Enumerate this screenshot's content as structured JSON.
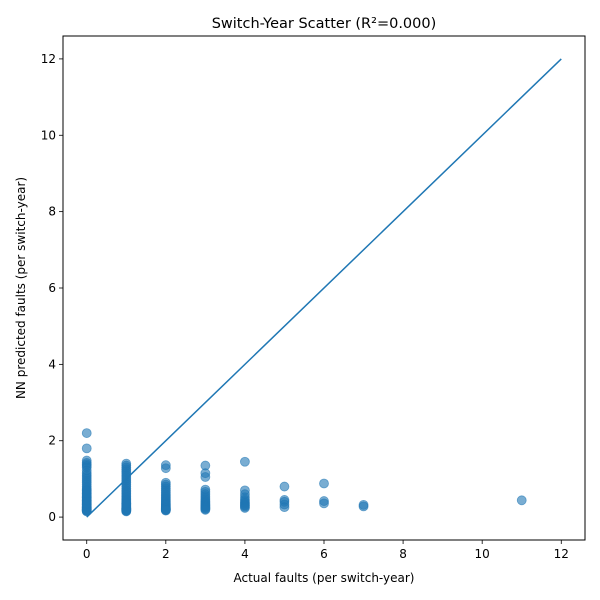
{
  "chart_data": {
    "type": "scatter",
    "title": "Switch-Year Scatter (R²=0.000)",
    "xlabel": "Actual faults (per switch-year)",
    "ylabel": "NN predicted faults (per switch-year)",
    "xlim": [
      -0.6,
      12.6
    ],
    "ylim": [
      -0.6,
      12.6
    ],
    "xticks": [
      0,
      2,
      4,
      6,
      8,
      10,
      12
    ],
    "yticks": [
      0,
      2,
      4,
      6,
      8,
      10,
      12
    ],
    "grid": false,
    "marker_color": "#1f77b4",
    "marker_alpha": 0.6,
    "line_color": "#1f77b4",
    "reference_line": {
      "x": [
        0,
        12
      ],
      "y": [
        0,
        12
      ]
    },
    "series": [
      {
        "x": [
          0,
          0,
          0,
          0,
          0,
          0,
          0,
          0,
          0,
          0,
          0,
          0,
          0,
          0,
          0,
          0,
          0,
          0,
          0,
          0,
          0,
          0,
          0,
          0,
          0,
          0,
          0,
          0,
          0,
          0,
          0,
          0,
          0,
          0,
          0,
          0,
          0,
          0,
          0,
          0,
          0,
          0,
          0,
          0,
          0,
          0,
          0,
          0,
          0,
          0,
          1,
          1,
          1,
          1,
          1,
          1,
          1,
          1,
          1,
          1,
          1,
          1,
          1,
          1,
          1,
          1,
          1,
          1,
          1,
          1,
          1,
          1,
          1,
          1,
          1,
          1,
          1,
          1,
          1,
          1,
          1,
          1,
          1,
          1,
          1,
          1,
          1,
          1,
          1,
          1,
          2,
          2,
          2,
          2,
          2,
          2,
          2,
          2,
          2,
          2,
          2,
          2,
          2,
          2,
          2,
          2,
          2,
          2,
          2,
          2,
          2,
          2,
          2,
          2,
          2,
          2,
          2,
          2,
          3,
          3,
          3,
          3,
          3,
          3,
          3,
          3,
          3,
          3,
          3,
          3,
          3,
          3,
          3,
          3,
          3,
          3,
          3,
          3,
          4,
          4,
          4,
          4,
          4,
          4,
          4,
          4,
          4,
          4,
          4,
          4,
          5,
          5,
          5,
          5,
          5,
          6,
          6,
          6,
          7,
          7,
          11
        ],
        "y": [
          2.2,
          1.8,
          1.48,
          1.42,
          1.38,
          1.34,
          1.3,
          1.22,
          1.15,
          1.1,
          1.05,
          1.0,
          0.95,
          0.9,
          0.85,
          0.8,
          0.76,
          0.72,
          0.68,
          0.64,
          0.6,
          0.57,
          0.54,
          0.51,
          0.48,
          0.45,
          0.43,
          0.41,
          0.39,
          0.37,
          0.35,
          0.33,
          0.31,
          0.29,
          0.27,
          0.25,
          0.23,
          0.21,
          0.2,
          0.19,
          0.18,
          0.17,
          0.16,
          0.15,
          0.26,
          0.34,
          0.44,
          0.52,
          0.62,
          0.7,
          1.4,
          1.35,
          1.3,
          1.25,
          1.2,
          1.15,
          1.1,
          1.05,
          1.0,
          0.95,
          0.9,
          0.85,
          0.8,
          0.75,
          0.7,
          0.66,
          0.62,
          0.58,
          0.54,
          0.5,
          0.47,
          0.44,
          0.41,
          0.38,
          0.35,
          0.33,
          0.31,
          0.29,
          0.27,
          0.25,
          0.23,
          0.21,
          0.2,
          0.19,
          0.18,
          0.17,
          0.16,
          0.15,
          0.22,
          0.36,
          1.36,
          1.28,
          0.9,
          0.85,
          0.8,
          0.75,
          0.7,
          0.65,
          0.6,
          0.56,
          0.52,
          0.48,
          0.45,
          0.42,
          0.39,
          0.36,
          0.34,
          0.32,
          0.3,
          0.28,
          0.26,
          0.24,
          0.22,
          0.21,
          0.2,
          0.19,
          0.18,
          0.17,
          1.35,
          1.15,
          1.05,
          0.72,
          0.66,
          0.6,
          0.55,
          0.5,
          0.46,
          0.42,
          0.39,
          0.36,
          0.33,
          0.31,
          0.29,
          0.27,
          0.25,
          0.23,
          0.21,
          0.19,
          1.45,
          0.7,
          0.6,
          0.52,
          0.46,
          0.42,
          0.38,
          0.35,
          0.32,
          0.3,
          0.27,
          0.24,
          0.8,
          0.45,
          0.4,
          0.33,
          0.26,
          0.88,
          0.42,
          0.36,
          0.32,
          0.28,
          0.44
        ]
      }
    ]
  }
}
